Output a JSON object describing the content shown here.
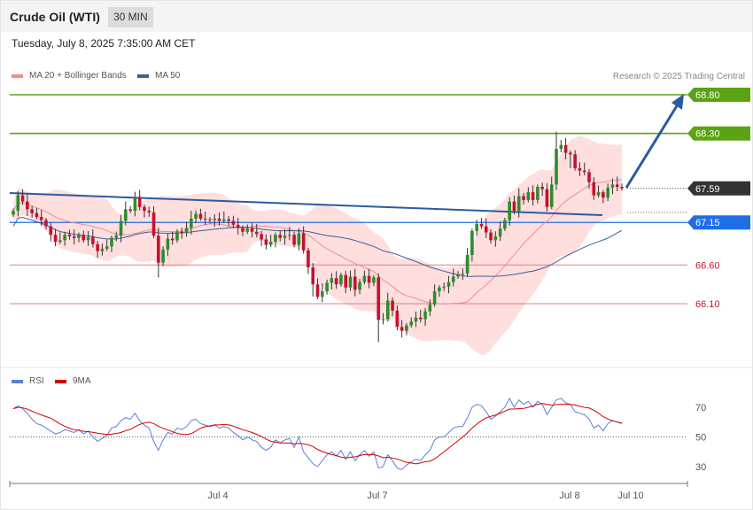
{
  "header": {
    "title": "Crude Oil (WTI)",
    "timeframe": "30 MIN"
  },
  "datetime": "Tuesday, July 8, 2025 7:35:00 AM CET",
  "credit": "Research © 2025 Trading Central",
  "colors": {
    "ma20": "#f08c8c",
    "bands": "#ffdede",
    "ma50": "#3a5f9e",
    "up": "#2d8c2d",
    "down": "#c8102e",
    "trend": "#2c5aa0",
    "level_green": "#5aa314",
    "level_blue": "#1e6ee6",
    "level_red": "#e57f7f",
    "last": "#333333",
    "rsi": "#5b7fd6",
    "rsi_ma": "#d40000"
  },
  "chart_data": [
    {
      "type": "candlestick",
      "title": "Crude Oil (WTI)",
      "timeframe": "30 MIN",
      "legend": [
        {
          "label": "MA 20 + Bollinger Bands",
          "color": "#f08c8c"
        },
        {
          "label": "MA 50",
          "color": "#3a5f9e"
        }
      ],
      "ylim": [
        65.5,
        69.1
      ],
      "x_ticks": [
        "Jul 4",
        "Jul 7",
        "Jul 8",
        "Jul 10"
      ],
      "price_levels": [
        {
          "value": 68.8,
          "label": "68.80",
          "style": "resistance",
          "color": "#5aa314"
        },
        {
          "value": 68.3,
          "label": "68.30",
          "style": "resistance",
          "color": "#5aa314"
        },
        {
          "value": 67.59,
          "label": "67.59",
          "style": "last",
          "color": "#333333"
        },
        {
          "value": 67.15,
          "label": "67.15",
          "style": "pivot",
          "color": "#1e6ee6"
        },
        {
          "value": 66.6,
          "label": "66.60",
          "style": "support",
          "color": "#e57f7f"
        },
        {
          "value": 66.1,
          "label": "66.10",
          "style": "support",
          "color": "#e57f7f"
        }
      ],
      "closes": [
        67.3,
        67.5,
        67.42,
        67.32,
        67.27,
        67.22,
        67.18,
        67.1,
        66.99,
        66.9,
        66.92,
        66.99,
        66.97,
        66.95,
        66.99,
        66.92,
        66.96,
        66.87,
        66.78,
        66.81,
        66.84,
        66.95,
        66.98,
        67.17,
        67.32,
        67.3,
        67.48,
        67.35,
        67.3,
        67.28,
        66.98,
        66.63,
        66.8,
        66.94,
        66.92,
        67.03,
        67.01,
        67.08,
        67.2,
        67.26,
        67.2,
        67.19,
        67.18,
        67.2,
        67.17,
        67.19,
        67.17,
        67.12,
        67.08,
        67.03,
        67.07,
        67.03,
        67.0,
        66.93,
        66.86,
        66.9,
        66.99,
        66.95,
        66.98,
        66.99,
        66.86,
        67.01,
        66.79,
        66.57,
        66.35,
        66.19,
        66.26,
        66.37,
        66.43,
        66.35,
        66.47,
        66.31,
        66.45,
        66.28,
        66.38,
        66.46,
        66.37,
        66.44,
        65.89,
        65.9,
        66.14,
        66.01,
        65.8,
        65.75,
        65.82,
        65.87,
        65.92,
        65.9,
        66.0,
        66.09,
        66.26,
        66.31,
        66.32,
        66.38,
        66.45,
        66.48,
        66.49,
        66.73,
        67.04,
        67.13,
        67.1,
        67.02,
        66.92,
        66.97,
        67.07,
        67.18,
        67.42,
        67.3,
        67.49,
        67.44,
        67.54,
        67.44,
        67.61,
        67.58,
        67.35,
        67.64,
        68.1,
        68.15,
        68.05,
        68.03,
        67.85,
        67.82,
        67.8,
        67.67,
        67.5,
        67.54,
        67.47,
        67.6,
        67.64,
        67.61,
        67.59
      ],
      "rsi": {
        "legend": [
          {
            "label": "RSI",
            "color": "#5b7fd6"
          },
          {
            "label": "9MA",
            "color": "#d40000"
          }
        ],
        "ylim": [
          20,
          80
        ],
        "ticks": [
          70,
          50,
          30
        ],
        "rsi_values": [
          69,
          71,
          69,
          66,
          62,
          59,
          58,
          56,
          54,
          52,
          53,
          55,
          54,
          53,
          55,
          52,
          54,
          50,
          47,
          49,
          51,
          56,
          57,
          61,
          63,
          62,
          66,
          61,
          58,
          56,
          47,
          41,
          48,
          53,
          52,
          56,
          55,
          57,
          61,
          62,
          59,
          58,
          57,
          58,
          56,
          57,
          56,
          53,
          51,
          48,
          50,
          48,
          47,
          43,
          41,
          43,
          48,
          46,
          48,
          49,
          43,
          50,
          40,
          36,
          32,
          30,
          34,
          38,
          40,
          37,
          41,
          35,
          40,
          34,
          38,
          41,
          37,
          40,
          29,
          30,
          38,
          34,
          29,
          28,
          31,
          33,
          35,
          34,
          38,
          41,
          48,
          50,
          50,
          53,
          56,
          57,
          57,
          63,
          70,
          72,
          71,
          67,
          62,
          64,
          67,
          70,
          76,
          70,
          75,
          72,
          74,
          70,
          74,
          72,
          65,
          70,
          75,
          76,
          73,
          72,
          67,
          66,
          65,
          62,
          56,
          58,
          54,
          59,
          61,
          60,
          59
        ]
      }
    }
  ]
}
